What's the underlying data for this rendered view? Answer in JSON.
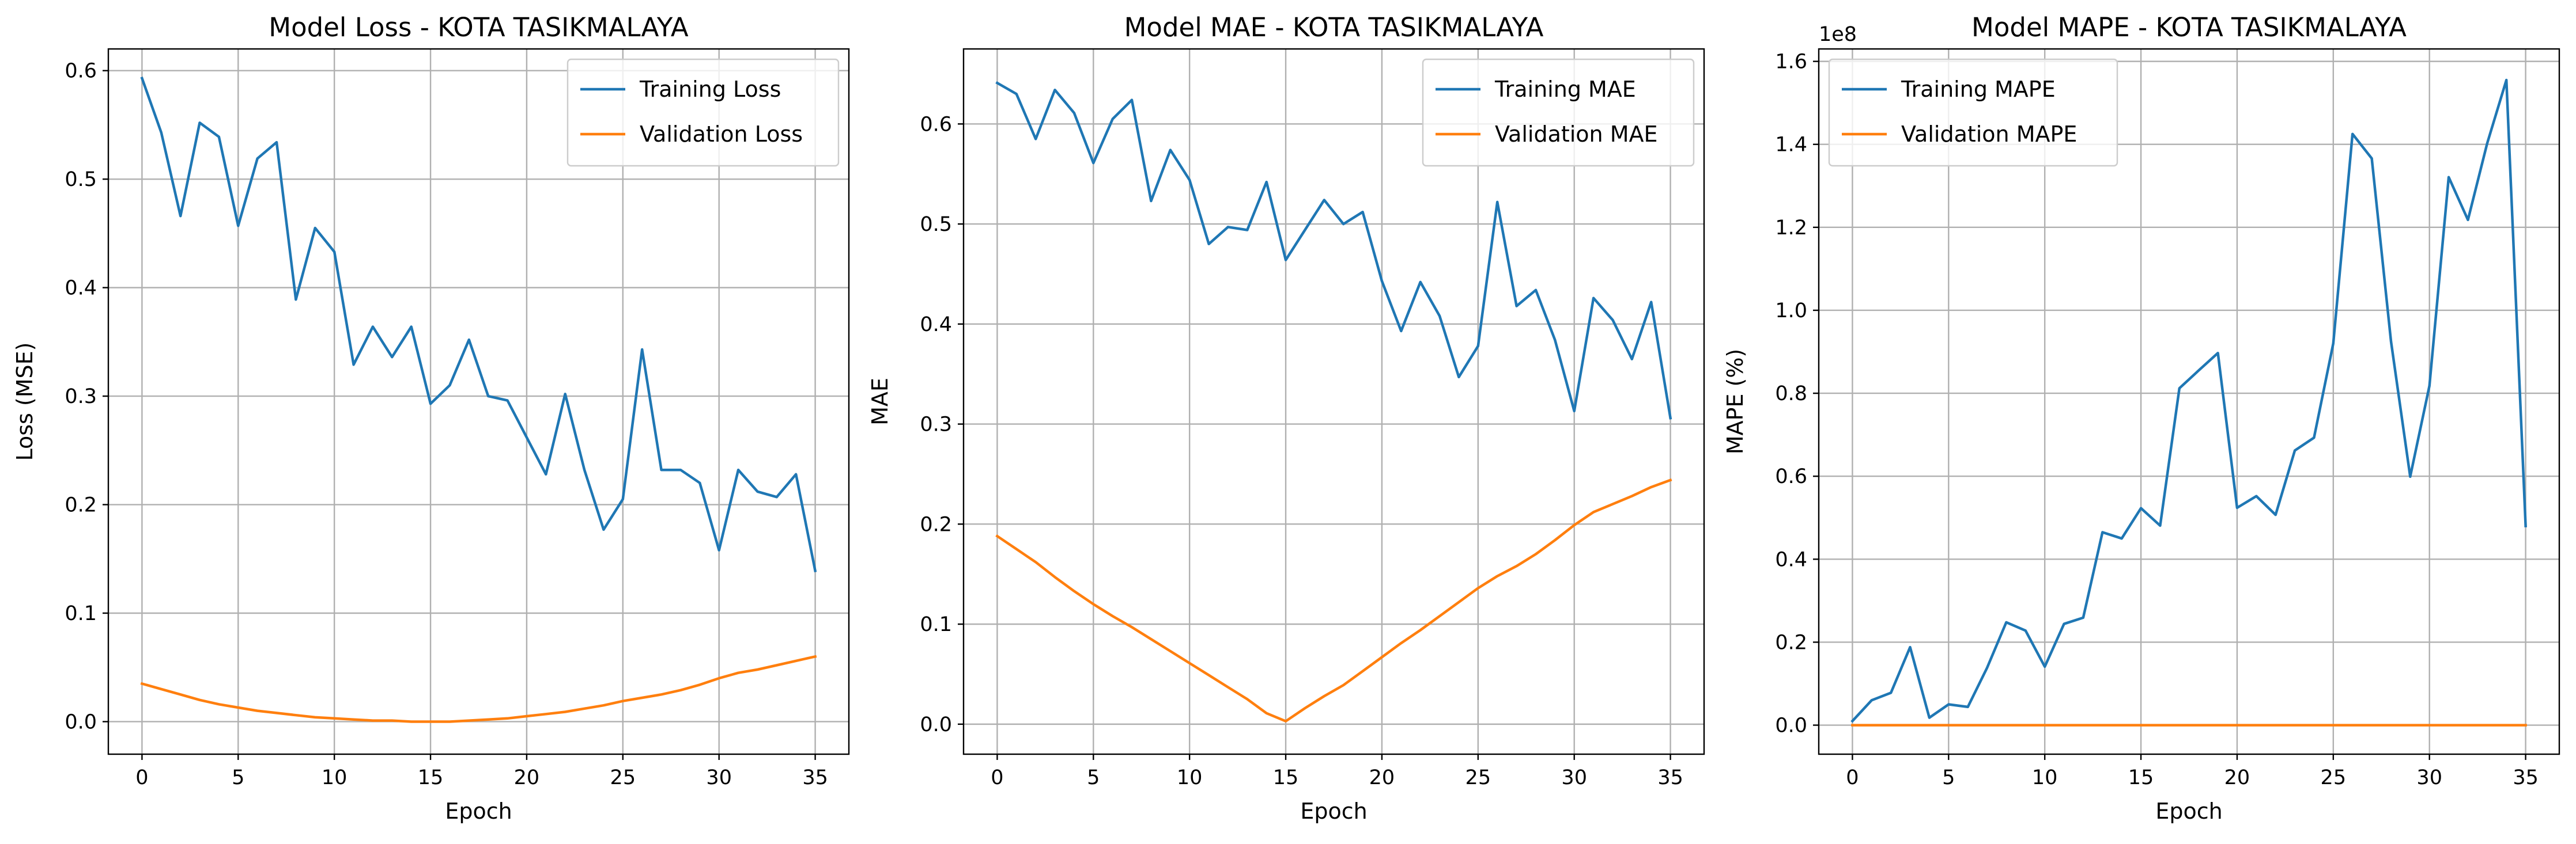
{
  "chart_data": [
    {
      "type": "line",
      "title": "Model Loss - KOTA TASIKMALAYA",
      "xlabel": "Epoch",
      "ylabel": "Loss (MSE)",
      "xlim": [
        -1.75,
        36.75
      ],
      "ylim": [
        -0.03,
        0.62
      ],
      "xticks": [
        0,
        5,
        10,
        15,
        20,
        25,
        30,
        35
      ],
      "yticks": [
        0.0,
        0.1,
        0.2,
        0.3,
        0.4,
        0.5,
        0.6
      ],
      "ytick_format": "fixed1",
      "grid": true,
      "legend": "upper right",
      "x": [
        0,
        1,
        2,
        3,
        4,
        5,
        6,
        7,
        8,
        9,
        10,
        11,
        12,
        13,
        14,
        15,
        16,
        17,
        18,
        19,
        20,
        21,
        22,
        23,
        24,
        25,
        26,
        27,
        28,
        29,
        30,
        31,
        32,
        33,
        34,
        35
      ],
      "series": [
        {
          "name": "Training Loss",
          "color": "#1f77b4",
          "values": [
            0.593,
            0.543,
            0.466,
            0.552,
            0.539,
            0.457,
            0.519,
            0.534,
            0.389,
            0.455,
            0.433,
            0.329,
            0.364,
            0.336,
            0.364,
            0.293,
            0.31,
            0.352,
            0.3,
            0.296,
            0.262,
            0.228,
            0.302,
            0.232,
            0.177,
            0.205,
            0.343,
            0.232,
            0.232,
            0.22,
            0.158,
            0.232,
            0.212,
            0.207,
            0.228,
            0.139
          ]
        },
        {
          "name": "Validation Loss",
          "color": "#ff7f0e",
          "values": [
            0.035,
            0.03,
            0.025,
            0.02,
            0.016,
            0.013,
            0.01,
            0.008,
            0.006,
            0.004,
            0.003,
            0.002,
            0.001,
            0.001,
            0.0,
            0.0,
            0.0,
            0.001,
            0.002,
            0.003,
            0.005,
            0.007,
            0.009,
            0.012,
            0.015,
            0.019,
            0.022,
            0.025,
            0.029,
            0.034,
            0.04,
            0.045,
            0.048,
            0.052,
            0.056,
            0.06
          ]
        }
      ]
    },
    {
      "type": "line",
      "title": "Model MAE - KOTA TASIKMALAYA",
      "xlabel": "Epoch",
      "ylabel": "MAE",
      "xlim": [
        -1.75,
        36.75
      ],
      "ylim": [
        -0.03,
        0.675
      ],
      "xticks": [
        0,
        5,
        10,
        15,
        20,
        25,
        30,
        35
      ],
      "yticks": [
        0.0,
        0.1,
        0.2,
        0.3,
        0.4,
        0.5,
        0.6
      ],
      "ytick_format": "fixed1",
      "grid": true,
      "legend": "upper right",
      "x": [
        0,
        1,
        2,
        3,
        4,
        5,
        6,
        7,
        8,
        9,
        10,
        11,
        12,
        13,
        14,
        15,
        16,
        17,
        18,
        19,
        20,
        21,
        22,
        23,
        24,
        25,
        26,
        27,
        28,
        29,
        30,
        31,
        32,
        33,
        34,
        35
      ],
      "series": [
        {
          "name": "Training MAE",
          "color": "#1f77b4",
          "values": [
            0.641,
            0.63,
            0.585,
            0.634,
            0.611,
            0.561,
            0.605,
            0.624,
            0.523,
            0.574,
            0.544,
            0.48,
            0.497,
            0.494,
            0.542,
            0.464,
            0.494,
            0.524,
            0.5,
            0.512,
            0.443,
            0.393,
            0.442,
            0.408,
            0.347,
            0.378,
            0.522,
            0.418,
            0.434,
            0.384,
            0.313,
            0.426,
            0.404,
            0.365,
            0.422,
            0.306
          ]
        },
        {
          "name": "Validation MAE",
          "color": "#ff7f0e",
          "values": [
            0.188,
            0.175,
            0.162,
            0.147,
            0.133,
            0.12,
            0.108,
            0.097,
            0.085,
            0.073,
            0.061,
            0.049,
            0.037,
            0.025,
            0.011,
            0.003,
            0.016,
            0.028,
            0.039,
            0.053,
            0.067,
            0.081,
            0.094,
            0.108,
            0.122,
            0.136,
            0.148,
            0.158,
            0.17,
            0.184,
            0.199,
            0.212,
            0.22,
            0.228,
            0.237,
            0.244
          ]
        }
      ]
    },
    {
      "type": "line",
      "title": "Model MAPE - KOTA TASIKMALAYA",
      "xlabel": "Epoch",
      "ylabel": "MAPE (%)",
      "offset_text": "1e8",
      "xlim": [
        -1.75,
        36.75
      ],
      "ylim": [
        -0.07,
        1.63
      ],
      "xticks": [
        0,
        5,
        10,
        15,
        20,
        25,
        30,
        35
      ],
      "yticks": [
        0.0,
        0.2,
        0.4,
        0.6,
        0.8,
        1.0,
        1.2,
        1.4,
        1.6
      ],
      "ytick_format": "fixed1",
      "grid": true,
      "legend": "upper left",
      "x": [
        0,
        1,
        2,
        3,
        4,
        5,
        6,
        7,
        8,
        9,
        10,
        11,
        12,
        13,
        14,
        15,
        16,
        17,
        18,
        19,
        20,
        21,
        22,
        23,
        24,
        25,
        26,
        27,
        28,
        29,
        30,
        31,
        32,
        33,
        34,
        35
      ],
      "series": [
        {
          "name": "Training MAPE",
          "color": "#1f77b4",
          "values": [
            0.01,
            0.06,
            0.078,
            0.188,
            0.018,
            0.05,
            0.044,
            0.138,
            0.248,
            0.228,
            0.141,
            0.244,
            0.259,
            0.465,
            0.45,
            0.523,
            0.481,
            0.812,
            0.855,
            0.897,
            0.524,
            0.552,
            0.507,
            0.662,
            0.693,
            0.92,
            1.425,
            1.366,
            0.925,
            0.599,
            0.818,
            1.321,
            1.218,
            1.402,
            1.555,
            0.48
          ]
        },
        {
          "name": "Validation MAPE",
          "color": "#ff7f0e",
          "values": [
            0,
            0,
            0,
            0,
            0,
            0,
            0,
            0,
            0,
            0,
            0,
            0,
            0,
            0,
            0,
            0,
            0,
            0,
            0,
            0,
            0,
            0,
            0,
            0,
            0,
            0,
            0,
            0,
            0,
            0,
            0,
            0,
            0,
            0,
            0,
            0
          ]
        }
      ]
    }
  ]
}
